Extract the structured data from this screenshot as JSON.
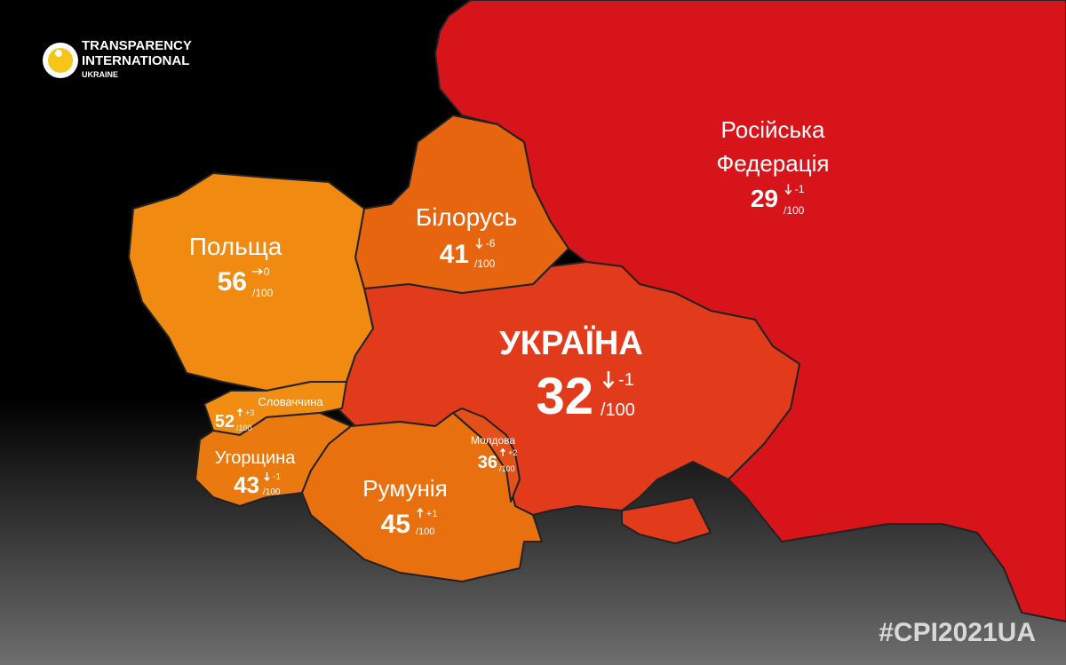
{
  "logo": {
    "lines": [
      "TRANSPARENCY",
      "INTERNATIONAL",
      "UKRAINE"
    ]
  },
  "countries": [
    {
      "name_lines": [
        "Російська",
        "Федерація"
      ],
      "score": "29",
      "change": "-1",
      "scale": "/100"
    },
    {
      "name_lines": [
        "Білорусь"
      ],
      "score": "41",
      "change": "-6",
      "scale": "/100"
    },
    {
      "name_lines": [
        "Польща"
      ],
      "score": "56",
      "change": "0",
      "scale": "/100"
    },
    {
      "name_lines": [
        "УКРАЇНА"
      ],
      "score": "32",
      "change": "-1",
      "scale": "/100"
    },
    {
      "name_lines": [
        "Словаччина"
      ],
      "score": "52",
      "change": "+3",
      "scale": "/100"
    },
    {
      "name_lines": [
        "Угорщина"
      ],
      "score": "43",
      "change": "-1",
      "scale": "/100"
    },
    {
      "name_lines": [
        "Румунія"
      ],
      "score": "45",
      "change": "+1",
      "scale": "/100"
    },
    {
      "name_lines": [
        "Молдова"
      ],
      "score": "36",
      "change": "+2",
      "scale": "/100"
    }
  ],
  "hashtag": "#CPI2021UA"
}
